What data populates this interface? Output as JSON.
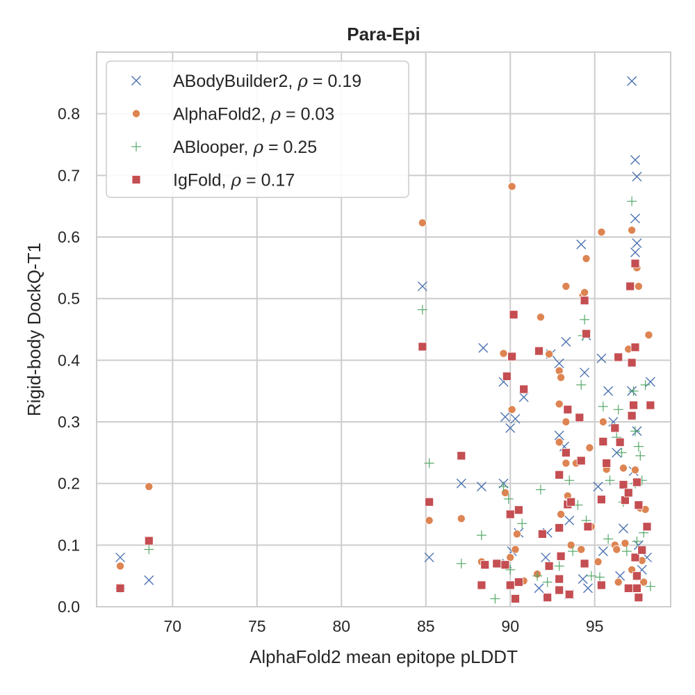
{
  "chart_data": {
    "type": "scatter",
    "title": "Para-Epi",
    "xlabel": "AlphaFold2 mean epitope pLDDT",
    "ylabel": "Rigid-body DockQ-T1",
    "xlim": [
      65.5,
      99.5
    ],
    "ylim": [
      0.0,
      0.9
    ],
    "x_ticks": [
      70,
      75,
      80,
      85,
      90,
      95
    ],
    "y_ticks": [
      0.0,
      0.1,
      0.2,
      0.3,
      0.4,
      0.5,
      0.6,
      0.7,
      0.8
    ],
    "y_tick_labels": [
      "0.0",
      "0.1",
      "0.2",
      "0.3",
      "0.4",
      "0.5",
      "0.6",
      "0.7",
      "0.8"
    ],
    "grid": true,
    "legend_position": "top-left",
    "series": [
      {
        "name": "ABodyBuilder2",
        "rho": "0.19",
        "marker": "x",
        "color": "#4c72b0",
        "points": [
          [
            66.9,
            0.08
          ],
          [
            68.6,
            0.043
          ],
          [
            84.8,
            0.52
          ],
          [
            85.2,
            0.08
          ],
          [
            87.1,
            0.2
          ],
          [
            88.3,
            0.195
          ],
          [
            88.4,
            0.42
          ],
          [
            89.6,
            0.2
          ],
          [
            89.6,
            0.365
          ],
          [
            89.7,
            0.308
          ],
          [
            89.8,
            0.07
          ],
          [
            90.0,
            0.29
          ],
          [
            90.3,
            0.305
          ],
          [
            90.1,
            0.09
          ],
          [
            90.5,
            0.12
          ],
          [
            90.8,
            0.34
          ],
          [
            91.7,
            0.03
          ],
          [
            92.1,
            0.08
          ],
          [
            92.2,
            0.12
          ],
          [
            92.4,
            0.41
          ],
          [
            92.9,
            0.395
          ],
          [
            92.9,
            0.278
          ],
          [
            93.2,
            0.26
          ],
          [
            93.3,
            0.43
          ],
          [
            93.5,
            0.14
          ],
          [
            93.5,
            0.02
          ],
          [
            94.2,
            0.588
          ],
          [
            94.4,
            0.38
          ],
          [
            94.5,
            0.44
          ],
          [
            94.3,
            0.045
          ],
          [
            94.6,
            0.03
          ],
          [
            95.4,
            0.403
          ],
          [
            95.2,
            0.195
          ],
          [
            95.5,
            0.09
          ],
          [
            95.8,
            0.35
          ],
          [
            96.1,
            0.3
          ],
          [
            96.3,
            0.25
          ],
          [
            96.5,
            0.05
          ],
          [
            96.7,
            0.127
          ],
          [
            97.2,
            0.853
          ],
          [
            97.4,
            0.725
          ],
          [
            97.5,
            0.698
          ],
          [
            97.4,
            0.63
          ],
          [
            97.5,
            0.59
          ],
          [
            97.4,
            0.575
          ],
          [
            97.2,
            0.35
          ],
          [
            97.5,
            0.285
          ],
          [
            97.3,
            0.22
          ],
          [
            97.6,
            0.1
          ],
          [
            97.8,
            0.06
          ],
          [
            98.1,
            0.08
          ],
          [
            98.3,
            0.365
          ]
        ]
      },
      {
        "name": "AlphaFold2",
        "rho": "0.03",
        "marker": "o",
        "color": "#dd8452",
        "points": [
          [
            66.9,
            0.066
          ],
          [
            68.6,
            0.195
          ],
          [
            84.8,
            0.623
          ],
          [
            85.2,
            0.14
          ],
          [
            87.1,
            0.143
          ],
          [
            88.3,
            0.073
          ],
          [
            89.6,
            0.411
          ],
          [
            89.7,
            0.185
          ],
          [
            90.1,
            0.682
          ],
          [
            90.1,
            0.32
          ],
          [
            90.0,
            0.08
          ],
          [
            90.4,
            0.118
          ],
          [
            90.3,
            0.093
          ],
          [
            90.8,
            0.042
          ],
          [
            91.6,
            0.053
          ],
          [
            91.8,
            0.47
          ],
          [
            92.3,
            0.41
          ],
          [
            92.9,
            0.329
          ],
          [
            92.9,
            0.383
          ],
          [
            93.0,
            0.372
          ],
          [
            92.9,
            0.267
          ],
          [
            93.0,
            0.15
          ],
          [
            93.3,
            0.52
          ],
          [
            93.3,
            0.3
          ],
          [
            93.3,
            0.233
          ],
          [
            93.4,
            0.18
          ],
          [
            93.6,
            0.1
          ],
          [
            93.9,
            0.233
          ],
          [
            94.2,
            0.093
          ],
          [
            94.3,
            0.505
          ],
          [
            94.4,
            0.51
          ],
          [
            94.5,
            0.565
          ],
          [
            94.7,
            0.258
          ],
          [
            94.8,
            0.13
          ],
          [
            95.2,
            0.073
          ],
          [
            95.4,
            0.608
          ],
          [
            95.5,
            0.3
          ],
          [
            95.7,
            0.223
          ],
          [
            96.2,
            0.1
          ],
          [
            96.3,
            0.093
          ],
          [
            96.4,
            0.04
          ],
          [
            96.7,
            0.225
          ],
          [
            96.8,
            0.103
          ],
          [
            97.0,
            0.418
          ],
          [
            97.2,
            0.611
          ],
          [
            97.2,
            0.06
          ],
          [
            97.4,
            0.222
          ],
          [
            97.5,
            0.55
          ],
          [
            97.6,
            0.52
          ],
          [
            97.7,
            0.16
          ],
          [
            97.8,
            0.075
          ],
          [
            97.9,
            0.04
          ],
          [
            98.0,
            0.158
          ],
          [
            98.2,
            0.441
          ]
        ]
      },
      {
        "name": "ABlooper",
        "rho": "0.25",
        "marker": "+",
        "color": "#55a868",
        "points": [
          [
            66.9,
            0.03
          ],
          [
            68.6,
            0.093
          ],
          [
            84.8,
            0.482
          ],
          [
            85.2,
            0.233
          ],
          [
            87.1,
            0.07
          ],
          [
            88.3,
            0.116
          ],
          [
            89.1,
            0.013
          ],
          [
            89.6,
            0.195
          ],
          [
            89.9,
            0.175
          ],
          [
            90.0,
            0.06
          ],
          [
            90.7,
            0.135
          ],
          [
            91.6,
            0.05
          ],
          [
            91.8,
            0.19
          ],
          [
            92.2,
            0.04
          ],
          [
            92.9,
            0.066
          ],
          [
            93.5,
            0.205
          ],
          [
            93.7,
            0.09
          ],
          [
            94.0,
            0.165
          ],
          [
            94.2,
            0.36
          ],
          [
            94.3,
            0.44
          ],
          [
            94.4,
            0.466
          ],
          [
            94.5,
            0.14
          ],
          [
            94.8,
            0.05
          ],
          [
            95.3,
            0.048
          ],
          [
            95.5,
            0.325
          ],
          [
            95.8,
            0.11
          ],
          [
            95.9,
            0.205
          ],
          [
            96.3,
            0.275
          ],
          [
            96.4,
            0.32
          ],
          [
            96.6,
            0.25
          ],
          [
            96.7,
            0.17
          ],
          [
            96.9,
            0.09
          ],
          [
            97.2,
            0.658
          ],
          [
            97.3,
            0.35
          ],
          [
            97.4,
            0.285
          ],
          [
            97.4,
            0.2
          ],
          [
            97.5,
            0.106
          ],
          [
            97.5,
            0.05
          ],
          [
            97.6,
            0.26
          ],
          [
            97.7,
            0.245
          ],
          [
            97.8,
            0.205
          ],
          [
            97.9,
            0.12
          ],
          [
            98.0,
            0.36
          ],
          [
            98.3,
            0.033
          ]
        ]
      },
      {
        "name": "IgFold",
        "rho": "0.17",
        "marker": "s",
        "color": "#c44e52",
        "points": [
          [
            66.9,
            0.03
          ],
          [
            68.6,
            0.107
          ],
          [
            84.8,
            0.422
          ],
          [
            85.2,
            0.17
          ],
          [
            87.1,
            0.245
          ],
          [
            88.3,
            0.035
          ],
          [
            88.5,
            0.068
          ],
          [
            89.2,
            0.07
          ],
          [
            89.7,
            0.068
          ],
          [
            89.8,
            0.374
          ],
          [
            90.0,
            0.15
          ],
          [
            90.1,
            0.406
          ],
          [
            90.2,
            0.474
          ],
          [
            90.0,
            0.035
          ],
          [
            90.3,
            0.013
          ],
          [
            90.5,
            0.157
          ],
          [
            90.5,
            0.04
          ],
          [
            90.8,
            0.353
          ],
          [
            91.7,
            0.415
          ],
          [
            91.9,
            0.118
          ],
          [
            92.2,
            0.015
          ],
          [
            92.3,
            0.066
          ],
          [
            92.9,
            0.214
          ],
          [
            92.9,
            0.128
          ],
          [
            93.0,
            0.082
          ],
          [
            92.9,
            0.045
          ],
          [
            92.9,
            0.027
          ],
          [
            93.3,
            0.25
          ],
          [
            93.4,
            0.32
          ],
          [
            93.4,
            0.166
          ],
          [
            93.6,
            0.17
          ],
          [
            93.5,
            0.02
          ],
          [
            94.1,
            0.307
          ],
          [
            94.2,
            0.237
          ],
          [
            94.4,
            0.497
          ],
          [
            94.4,
            0.07
          ],
          [
            94.5,
            0.443
          ],
          [
            94.6,
            0.13
          ],
          [
            95.4,
            0.174
          ],
          [
            95.5,
            0.268
          ],
          [
            95.7,
            0.233
          ],
          [
            95.4,
            0.035
          ],
          [
            96.2,
            0.29
          ],
          [
            96.4,
            0.405
          ],
          [
            96.5,
            0.267
          ],
          [
            96.7,
            0.198
          ],
          [
            96.8,
            0.173
          ],
          [
            97.1,
            0.52
          ],
          [
            97.0,
            0.185
          ],
          [
            97.0,
            0.03
          ],
          [
            97.2,
            0.396
          ],
          [
            97.3,
            0.327
          ],
          [
            97.2,
            0.31
          ],
          [
            97.4,
            0.557
          ],
          [
            97.4,
            0.421
          ],
          [
            97.5,
            0.202
          ],
          [
            97.6,
            0.165
          ],
          [
            97.4,
            0.08
          ],
          [
            97.5,
            0.05
          ],
          [
            97.6,
            0.015
          ],
          [
            97.5,
            0.03
          ],
          [
            97.8,
            0.092
          ],
          [
            98.1,
            0.13
          ],
          [
            98.3,
            0.327
          ]
        ]
      }
    ]
  },
  "legend": {
    "rho_symbol": "ρ",
    "equals": " = "
  }
}
